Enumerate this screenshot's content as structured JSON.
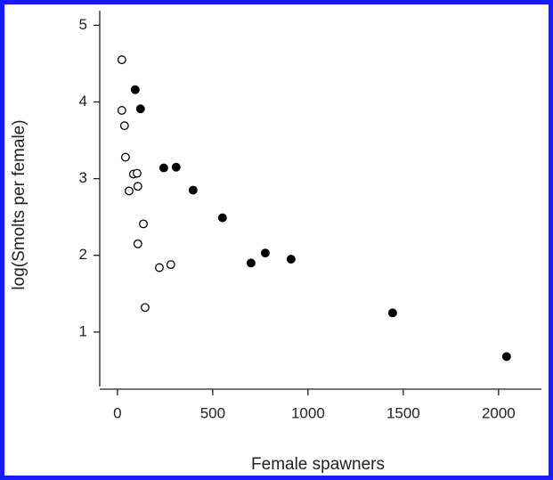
{
  "chart_data": {
    "type": "scatter",
    "x_label": "Female spawners",
    "y_label": "log(Smolts per female)",
    "xlim": [
      -93,
      2225
    ],
    "ylim": [
      0.29,
      5.19
    ],
    "xticks": [
      0,
      500,
      1000,
      1500,
      2000
    ],
    "yticks": [
      1,
      2,
      3,
      4,
      5
    ],
    "grid": false,
    "series": [
      {
        "color": "#000000",
        "filled": false,
        "x": [
          23,
          23,
          37,
          42,
          84,
          103,
          61,
          107,
          136,
          107,
          220,
          280,
          145
        ],
        "values": [
          4.55,
          3.89,
          3.69,
          3.28,
          3.06,
          3.07,
          2.84,
          2.9,
          2.41,
          2.15,
          1.84,
          1.88,
          1.32
        ]
      },
      {
        "color": "#000000",
        "filled": true,
        "x": [
          93,
          121,
          243,
          308,
          397,
          551,
          701,
          776,
          911,
          1444,
          2042
        ],
        "values": [
          4.16,
          3.91,
          3.14,
          3.15,
          2.85,
          2.49,
          1.9,
          2.03,
          1.95,
          1.25,
          0.68
        ]
      }
    ]
  }
}
